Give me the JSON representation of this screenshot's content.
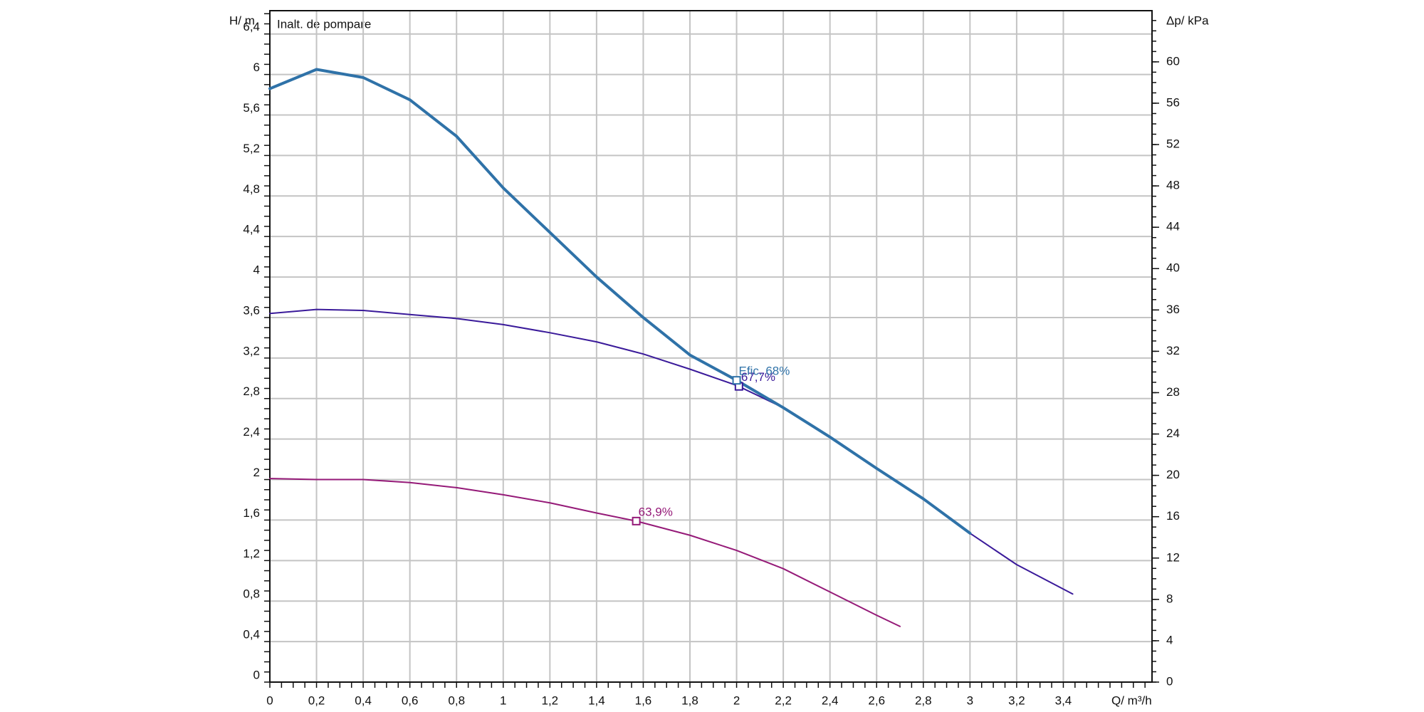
{
  "chart_data": {
    "type": "line",
    "annotation": "Inalt. de pompare",
    "ylabel": "H/ m",
    "y2label": "Δp/ kPa",
    "xlabel": "Q/ m³/h",
    "xlim": [
      0,
      3.78
    ],
    "ylim": [
      0,
      6.63
    ],
    "y2lim": [
      0,
      64.95
    ],
    "grid": true,
    "xticks": [
      0,
      {
        "value": 0.2,
        "label": "0,2"
      },
      {
        "value": 0.4,
        "label": "0,4"
      },
      {
        "value": 0.6,
        "label": "0,6"
      },
      {
        "value": 0.8,
        "label": "0,8"
      },
      1,
      {
        "value": 1.2,
        "label": "1,2"
      },
      {
        "value": 1.4,
        "label": "1,4"
      },
      {
        "value": 1.6,
        "label": "1,6"
      },
      {
        "value": 1.8,
        "label": "1,8"
      },
      2,
      {
        "value": 2.2,
        "label": "2,2"
      },
      {
        "value": 2.4,
        "label": "2,4"
      },
      {
        "value": 2.6,
        "label": "2,6"
      },
      {
        "value": 2.8,
        "label": "2,8"
      },
      3,
      {
        "value": 3.2,
        "label": "3,2"
      },
      {
        "value": 3.4,
        "label": "3,4"
      }
    ],
    "yticks": [
      0,
      {
        "value": 0.4,
        "label": "0,4"
      },
      {
        "value": 0.8,
        "label": "0,8"
      },
      {
        "value": 1.2,
        "label": "1,2"
      },
      {
        "value": 1.6,
        "label": "1,6"
      },
      2,
      {
        "value": 2.4,
        "label": "2,4"
      },
      {
        "value": 2.8,
        "label": "2,8"
      },
      {
        "value": 3.2,
        "label": "3,2"
      },
      {
        "value": 3.6,
        "label": "3,6"
      },
      4,
      {
        "value": 4.4,
        "label": "4,4"
      },
      {
        "value": 4.8,
        "label": "4,8"
      },
      {
        "value": 5.2,
        "label": "5,2"
      },
      {
        "value": 5.6,
        "label": "5,6"
      },
      6,
      {
        "value": 6.4,
        "label": "6,4"
      }
    ],
    "y2ticks": [
      0,
      4,
      8,
      12,
      16,
      20,
      24,
      28,
      32,
      36,
      40,
      44,
      48,
      52,
      56,
      60
    ],
    "series": [
      {
        "color": "#3a1a9a",
        "width": 2,
        "x": [
          0,
          0.2,
          0.4,
          0.6,
          0.8,
          1.0,
          1.2,
          1.4,
          1.6,
          1.8,
          2.0,
          2.2,
          2.4,
          2.6,
          2.8,
          3.0,
          3.2,
          3.44
        ],
        "values": [
          3.64,
          3.68,
          3.67,
          3.63,
          3.59,
          3.53,
          3.45,
          3.36,
          3.24,
          3.09,
          2.93,
          2.71,
          2.42,
          2.11,
          1.81,
          1.47,
          1.16,
          0.87
        ],
        "point": {
          "x": 2.01,
          "y": 2.92,
          "label": "67,7%"
        }
      },
      {
        "color": "#2f72a8",
        "width": 4,
        "x": [
          0,
          0.2,
          0.4,
          0.6,
          0.8,
          1.0,
          1.2,
          1.4,
          1.6,
          1.8,
          2.0,
          2.2,
          2.4,
          2.6,
          2.8,
          3.0
        ],
        "values": [
          5.86,
          6.05,
          5.97,
          5.75,
          5.39,
          4.88,
          4.44,
          4.0,
          3.6,
          3.23,
          2.98,
          2.71,
          2.42,
          2.11,
          1.81,
          1.47
        ],
        "point": {
          "x": 2.0,
          "y": 2.98,
          "label": "Efic. 68%"
        }
      },
      {
        "color": "#951a78",
        "width": 2,
        "x": [
          0,
          0.2,
          0.4,
          0.6,
          0.8,
          1.0,
          1.2,
          1.4,
          1.57,
          1.8,
          2.0,
          2.2,
          2.4,
          2.6,
          2.7
        ],
        "values": [
          2.01,
          2.0,
          2.0,
          1.97,
          1.92,
          1.85,
          1.77,
          1.67,
          1.59,
          1.45,
          1.3,
          1.12,
          0.89,
          0.66,
          0.55
        ],
        "point": {
          "x": 1.57,
          "y": 1.59,
          "label": "63,9%"
        }
      }
    ]
  }
}
